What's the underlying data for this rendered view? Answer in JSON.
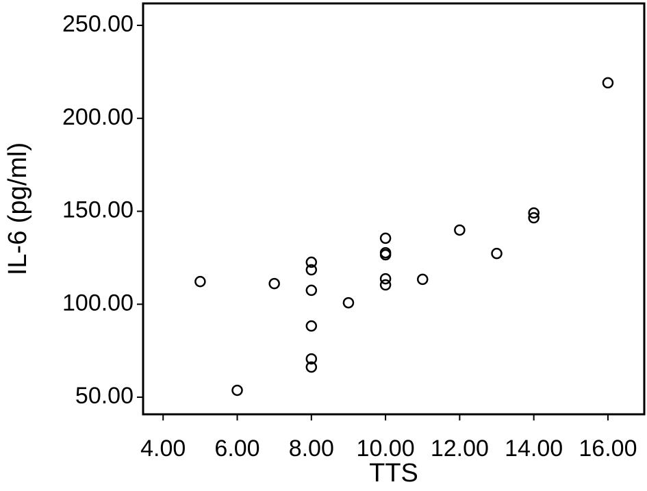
{
  "chart_data": {
    "type": "scatter",
    "x_label": "TTS",
    "y_label": "IL-6 (pg/ml)",
    "xlim": [
      3.46,
      16.98
    ],
    "ylim": [
      40.8,
      261.8
    ],
    "xticks": [
      {
        "value": 4,
        "label": "4.00"
      },
      {
        "value": 6,
        "label": "6.00"
      },
      {
        "value": 8,
        "label": "8.00"
      },
      {
        "value": 10,
        "label": "10.00"
      },
      {
        "value": 12,
        "label": "12.00"
      },
      {
        "value": 14,
        "label": "14.00"
      },
      {
        "value": 16,
        "label": "16.00"
      }
    ],
    "yticks": [
      {
        "value": 50,
        "label": "50.00"
      },
      {
        "value": 100,
        "label": "100.00"
      },
      {
        "value": 150,
        "label": "150.00"
      },
      {
        "value": 200,
        "label": "200.00"
      },
      {
        "value": 250,
        "label": "250.00"
      }
    ],
    "color": "#000000",
    "x": [
      5,
      6,
      7,
      8,
      8,
      8,
      8,
      8,
      8,
      9,
      10,
      10,
      10,
      10,
      10,
      11,
      12,
      13,
      14,
      14,
      16
    ],
    "y": [
      112.2,
      53.7,
      111.1,
      122.6,
      118.5,
      107.5,
      88.3,
      70.6,
      66.2,
      100.8,
      135.5,
      127.7,
      126.6,
      113.7,
      110.4,
      113.4,
      139.9,
      127.3,
      149.1,
      146.5,
      219.1
    ]
  }
}
